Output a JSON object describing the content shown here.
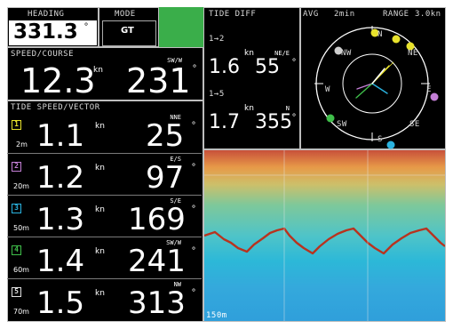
{
  "heading": {
    "label": "HEADING",
    "value": "331.3"
  },
  "mode": {
    "label": "MODE",
    "value": "GT"
  },
  "units": {
    "speed": "kn",
    "degree": "°"
  },
  "speed_course": {
    "label": "SPEED/COURSE",
    "speed": "12.3",
    "course": "231",
    "course_dir": "SW/W"
  },
  "tide_vector": {
    "label": "TIDE SPEED/VECTOR",
    "layers": [
      {
        "num": "1",
        "depth": "2m",
        "speed": "1.1",
        "course": "25",
        "dir": "NNE"
      },
      {
        "num": "2",
        "depth": "20m",
        "speed": "1.2",
        "course": "97",
        "dir": "E/S"
      },
      {
        "num": "3",
        "depth": "50m",
        "speed": "1.3",
        "course": "169",
        "dir": "S/E"
      },
      {
        "num": "4",
        "depth": "60m",
        "speed": "1.4",
        "course": "241",
        "dir": "SW/W"
      },
      {
        "num": "5",
        "depth": "70m",
        "speed": "1.5",
        "course": "313",
        "dir": "NW"
      }
    ]
  },
  "tide_diff": {
    "label": "TIDE DIFF",
    "rows": [
      {
        "pair": "1→2",
        "speed": "1.6",
        "course": "55",
        "dir": "NE/E"
      },
      {
        "pair": "1→5",
        "speed": "1.7",
        "course": "355",
        "dir": "N"
      }
    ]
  },
  "vector_plot": {
    "avg_label": "AVG",
    "avg_value": "2min",
    "range_label": "RANGE",
    "range_value": "3.0kn",
    "cardinals": {
      "n": "N",
      "ne": "NE",
      "e": "E",
      "se": "SE",
      "s": "S",
      "sw": "SW",
      "w": "W",
      "nw": "NW"
    }
  },
  "echo": {
    "depth_label": "150m"
  },
  "colors": {
    "layer1": "#e8e22c",
    "layer2": "#c47fd6",
    "layer3": "#2ab3e0",
    "layer4": "#3fbf4a",
    "layer5": "#e0e0e0",
    "status": "#3aae4a"
  }
}
